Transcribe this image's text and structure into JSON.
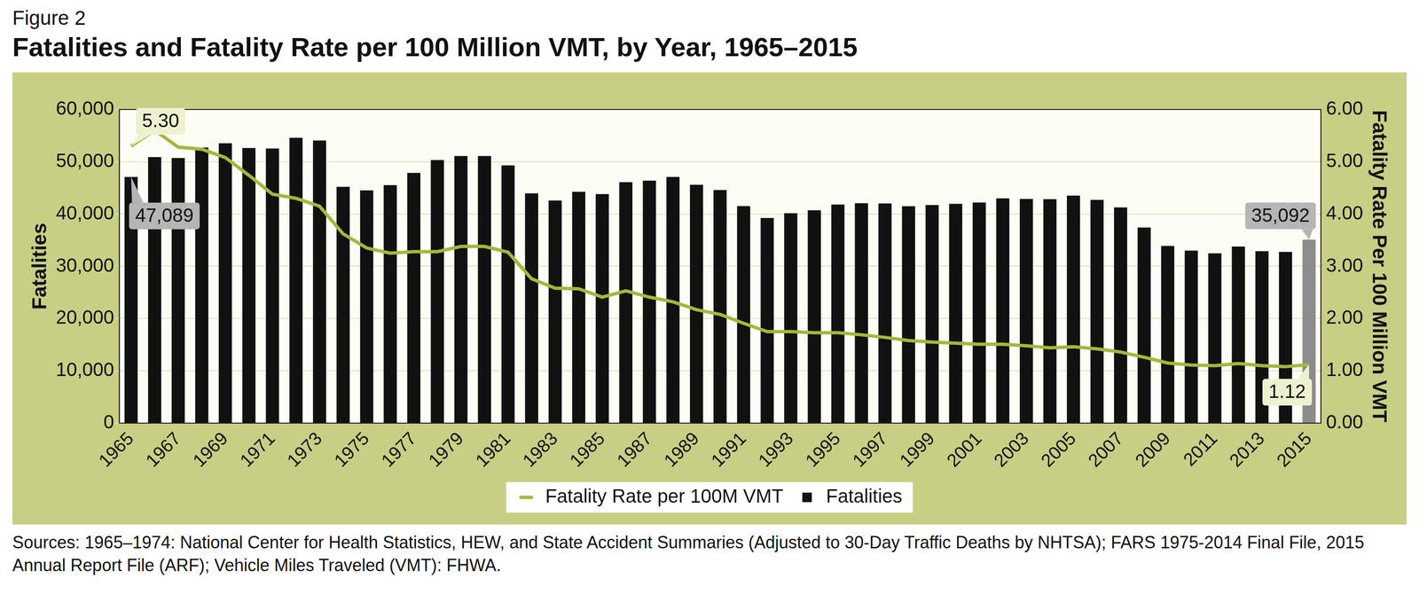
{
  "chart_data": {
    "type": "bar",
    "figure_label": "Figure 2",
    "title": "Fatalities and Fatality Rate per 100 Million VMT, by Year, 1965–2015",
    "source": "Sources: 1965–1974: National Center for Health Statistics, HEW, and State Accident Summaries (Adjusted to 30-Day Traffic Deaths by NHTSA); FARS 1975-2014 Final File, 2015 Annual Report File (ARF); Vehicle Miles Traveled (VMT): FHWA.",
    "categories": [
      "1965",
      null,
      "1967",
      null,
      "1969",
      null,
      "1971",
      null,
      "1973",
      null,
      "1975",
      null,
      "1977",
      null,
      "1979",
      null,
      "1981",
      null,
      "1983",
      null,
      "1985",
      null,
      "1987",
      null,
      "1989",
      null,
      "1991",
      null,
      "1993",
      null,
      "1995",
      null,
      "1997",
      null,
      "1999",
      null,
      "2001",
      null,
      "2003",
      null,
      "2005",
      null,
      "2007",
      null,
      "2009",
      null,
      "2011",
      null,
      "2013",
      null,
      "2015"
    ],
    "series": [
      {
        "name": "Fatalities",
        "type": "bar",
        "color": "#111111",
        "colors": [
          "#111111",
          "#111111",
          "#111111",
          "#111111",
          "#111111",
          "#111111",
          "#111111",
          "#111111",
          "#111111",
          "#111111",
          "#111111",
          "#111111",
          "#111111",
          "#111111",
          "#111111",
          "#111111",
          "#111111",
          "#111111",
          "#111111",
          "#111111",
          "#111111",
          "#111111",
          "#111111",
          "#111111",
          "#111111",
          "#111111",
          "#111111",
          "#111111",
          "#111111",
          "#111111",
          "#111111",
          "#111111",
          "#111111",
          "#111111",
          "#111111",
          "#111111",
          "#111111",
          "#111111",
          "#111111",
          "#111111",
          "#111111",
          "#111111",
          "#111111",
          "#111111",
          "#111111",
          "#111111",
          "#111111",
          "#111111",
          "#111111",
          "#111111",
          "#8c8c8c"
        ],
        "values": [
          47089,
          50894,
          50724,
          52725,
          53543,
          52627,
          52542,
          54589,
          54052,
          45196,
          44525,
          45523,
          47878,
          50331,
          51093,
          51091,
          49301,
          43945,
          42589,
          44257,
          43825,
          46087,
          46390,
          47087,
          45582,
          44599,
          41508,
          39250,
          40150,
          40716,
          41817,
          42065,
          42013,
          41501,
          41717,
          41945,
          42196,
          43005,
          42884,
          42836,
          43510,
          42708,
          41259,
          37423,
          33883,
          32999,
          32479,
          33782,
          32893,
          32744,
          35092
        ]
      },
      {
        "name": "Fatality Rate per 100M VMT",
        "type": "line",
        "axis": "y2",
        "color": "#a4b73a",
        "values": [
          5.3,
          5.6,
          5.28,
          5.24,
          5.08,
          4.74,
          4.38,
          4.3,
          4.15,
          3.62,
          3.35,
          3.25,
          3.28,
          3.28,
          3.38,
          3.38,
          3.27,
          2.76,
          2.58,
          2.57,
          2.41,
          2.53,
          2.41,
          2.32,
          2.17,
          2.08,
          1.91,
          1.75,
          1.75,
          1.73,
          1.73,
          1.69,
          1.64,
          1.58,
          1.55,
          1.53,
          1.51,
          1.51,
          1.48,
          1.44,
          1.46,
          1.42,
          1.36,
          1.26,
          1.15,
          1.11,
          1.1,
          1.14,
          1.1,
          1.08,
          1.12
        ]
      }
    ],
    "y_label": "Fatalities",
    "y2_label": "Fatality Rate Per 100 Million VMT",
    "ylim": [
      0,
      60000
    ],
    "yticks": [
      0,
      {
        "value": 10000,
        "label": "10,000"
      },
      {
        "value": 20000,
        "label": "20,000"
      },
      {
        "value": 30000,
        "label": "30,000"
      },
      {
        "value": 40000,
        "label": "40,000"
      },
      {
        "value": 50000,
        "label": "50,000"
      },
      {
        "value": 60000,
        "label": "60,000"
      }
    ],
    "y2lim": [
      0,
      6
    ],
    "y2ticks": [
      {
        "value": 0,
        "label": "0.00"
      },
      {
        "value": 1,
        "label": "1.00"
      },
      {
        "value": 2,
        "label": "2.00"
      },
      {
        "value": 3,
        "label": "3.00"
      },
      {
        "value": 4,
        "label": "4.00"
      },
      {
        "value": 5,
        "label": "5.00"
      },
      {
        "value": 6,
        "label": "6.00"
      }
    ],
    "grid": true,
    "legend": "bottom",
    "annotations": [
      {
        "text": "5.30",
        "x": "1965",
        "series": "Fatality Rate per 100M VMT"
      },
      {
        "text": "47,089",
        "x": "1965",
        "series": "Fatalities"
      },
      {
        "text": "35,092",
        "x": "2015",
        "series": "Fatalities"
      },
      {
        "text": "1.12",
        "x": "2015",
        "series": "Fatality Rate per 100M VMT"
      }
    ]
  }
}
